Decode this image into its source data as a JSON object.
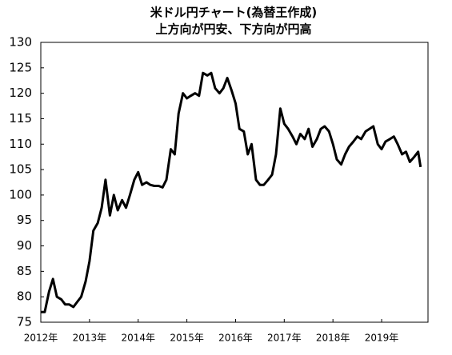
{
  "chart_data": {
    "type": "line",
    "title": "米ドル円チャート(為替王作成)",
    "subtitle": "上方向が円安、下方向が円高",
    "x": [
      2012.0,
      2012.08,
      2012.17,
      2012.25,
      2012.33,
      2012.42,
      2012.5,
      2012.58,
      2012.67,
      2012.75,
      2012.83,
      2012.92,
      2013.0,
      2013.08,
      2013.17,
      2013.25,
      2013.33,
      2013.42,
      2013.5,
      2013.58,
      2013.67,
      2013.75,
      2013.83,
      2013.92,
      2014.0,
      2014.08,
      2014.17,
      2014.25,
      2014.33,
      2014.42,
      2014.5,
      2014.58,
      2014.67,
      2014.75,
      2014.83,
      2014.92,
      2015.0,
      2015.08,
      2015.17,
      2015.25,
      2015.33,
      2015.42,
      2015.5,
      2015.58,
      2015.67,
      2015.75,
      2015.83,
      2015.92,
      2016.0,
      2016.08,
      2016.17,
      2016.25,
      2016.33,
      2016.42,
      2016.5,
      2016.58,
      2016.67,
      2016.75,
      2016.83,
      2016.92,
      2017.0,
      2017.08,
      2017.17,
      2017.25,
      2017.33,
      2017.42,
      2017.5,
      2017.58,
      2017.67,
      2017.75,
      2017.83,
      2017.92,
      2018.0,
      2018.08,
      2018.17,
      2018.25,
      2018.33,
      2018.42,
      2018.5,
      2018.58,
      2018.67,
      2018.75,
      2018.83,
      2018.92,
      2019.0,
      2019.08,
      2019.17,
      2019.25,
      2019.33,
      2019.42,
      2019.5,
      2019.58,
      2019.67,
      2019.75,
      2019.8
    ],
    "series": [
      {
        "color": "#000000",
        "values": [
          77,
          77,
          81,
          83.5,
          80,
          79.5,
          78.5,
          78.5,
          78,
          79,
          80,
          83,
          87,
          93,
          94.5,
          97.5,
          103,
          96,
          100,
          97,
          99,
          97.5,
          100,
          103,
          104.5,
          102,
          102.5,
          102,
          101.8,
          101.8,
          101.5,
          103,
          109,
          108,
          116,
          120,
          119,
          119.5,
          120,
          119.5,
          124,
          123.5,
          124,
          121,
          120,
          121,
          123,
          120.5,
          118,
          113,
          112.5,
          108,
          110,
          103,
          102,
          102,
          103,
          104,
          108,
          117,
          114,
          113,
          111.5,
          110,
          112,
          111,
          113,
          109.5,
          111,
          113,
          113.5,
          112.5,
          110,
          107,
          106,
          108,
          109.5,
          110.5,
          111.5,
          111,
          112.5,
          113,
          113.5,
          110,
          109,
          110.5,
          111,
          111.5,
          110,
          108,
          108.5,
          106.5,
          107.5,
          108.5,
          105.5
        ]
      }
    ],
    "xlim": [
      2012,
      2020
    ],
    "xticks": [
      {
        "value": 2012,
        "label": "2012年"
      },
      {
        "value": 2013,
        "label": "2013年"
      },
      {
        "value": 2014,
        "label": "2014年"
      },
      {
        "value": 2015,
        "label": "2015年"
      },
      {
        "value": 2016,
        "label": "2016年"
      },
      {
        "value": 2017,
        "label": "2017年"
      },
      {
        "value": 2018,
        "label": "2018年"
      },
      {
        "value": 2019,
        "label": "2019年"
      }
    ],
    "ylim": [
      75,
      130
    ],
    "yticks": [
      75,
      80,
      85,
      90,
      95,
      100,
      105,
      110,
      115,
      120,
      125,
      130
    ],
    "grid": false
  }
}
